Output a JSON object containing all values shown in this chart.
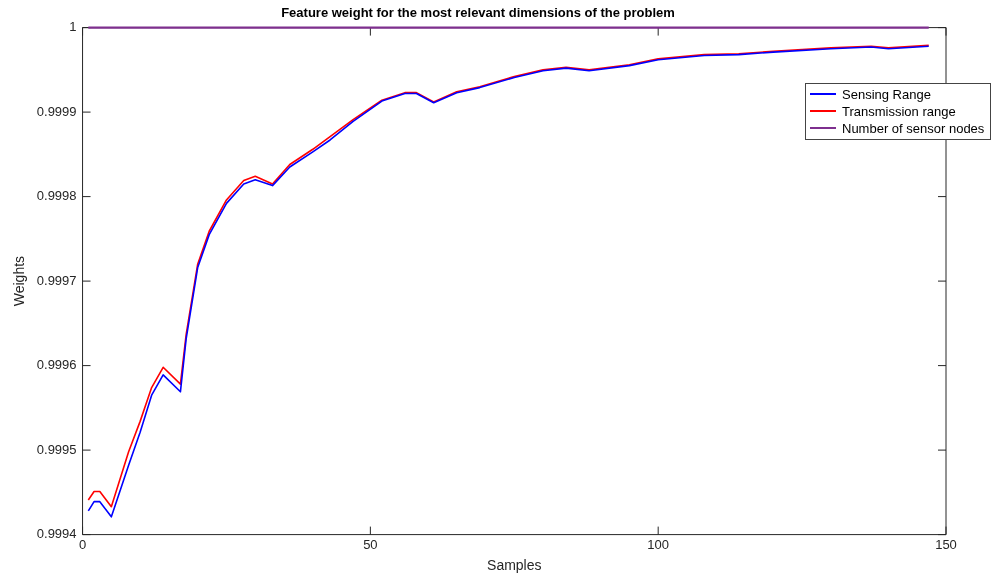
{
  "chart_data": {
    "type": "line",
    "title": "Feature weight for the most relevant dimensions of the problem",
    "xlabel": "Samples",
    "ylabel": "Weights",
    "xlim": [
      0,
      150
    ],
    "xticks": [
      0,
      50,
      100,
      150
    ],
    "ylim": [
      0.9994,
      1
    ],
    "yticks": [
      0.9994,
      0.9995,
      0.9996,
      0.9997,
      0.9998,
      0.9999,
      1
    ],
    "grid": false,
    "legend": "top right",
    "marker": "none",
    "line_style": "solid",
    "series": [
      {
        "name": "Sensing Range",
        "color": "#0000ff",
        "x": [
          1,
          2,
          3,
          5,
          8,
          10,
          12,
          14,
          17,
          18,
          20,
          22,
          25,
          28,
          30,
          33,
          36,
          40,
          43,
          47,
          52,
          56,
          58,
          61,
          65,
          69,
          75,
          80,
          84,
          88,
          95,
          100,
          108,
          114,
          120,
          130,
          137,
          140,
          147
        ],
        "values": [
          0.999428,
          0.999439,
          0.999439,
          0.999421,
          0.999482,
          0.999521,
          0.999565,
          0.999589,
          0.999569,
          0.999632,
          0.999716,
          0.999755,
          0.999792,
          0.999815,
          0.99982,
          0.999813,
          0.999835,
          0.999853,
          0.999867,
          0.999889,
          0.999913,
          0.999922,
          0.999922,
          0.999911,
          0.999923,
          0.999929,
          0.999941,
          0.999949,
          0.999952,
          0.999949,
          0.999955,
          0.999962,
          0.999967,
          0.999968,
          0.999971,
          0.999975,
          0.999977,
          0.999975,
          0.999978
        ]
      },
      {
        "name": "Transmission range",
        "color": "#ff0000",
        "x": [
          1,
          2,
          3,
          5,
          8,
          10,
          12,
          14,
          17,
          18,
          20,
          22,
          25,
          28,
          30,
          33,
          36,
          40,
          43,
          47,
          52,
          56,
          58,
          61,
          65,
          69,
          75,
          80,
          84,
          88,
          95,
          100,
          108,
          114,
          120,
          130,
          137,
          140,
          147
        ],
        "values": [
          0.999441,
          0.999451,
          0.999451,
          0.999433,
          0.999498,
          0.999534,
          0.999574,
          0.999598,
          0.999578,
          0.999637,
          0.99972,
          0.999759,
          0.999796,
          0.999819,
          0.999824,
          0.999815,
          0.999838,
          0.999856,
          0.999871,
          0.999891,
          0.999914,
          0.999923,
          0.999923,
          0.999912,
          0.999924,
          0.99993,
          0.999942,
          0.99995,
          0.999953,
          0.99995,
          0.999956,
          0.999963,
          0.999968,
          0.999969,
          0.999972,
          0.999976,
          0.999978,
          0.999976,
          0.999979
        ]
      },
      {
        "name": "Number of sensor nodes",
        "color": "#7e2f8e",
        "x": [
          1,
          147
        ],
        "values": [
          1,
          1
        ]
      }
    ]
  }
}
